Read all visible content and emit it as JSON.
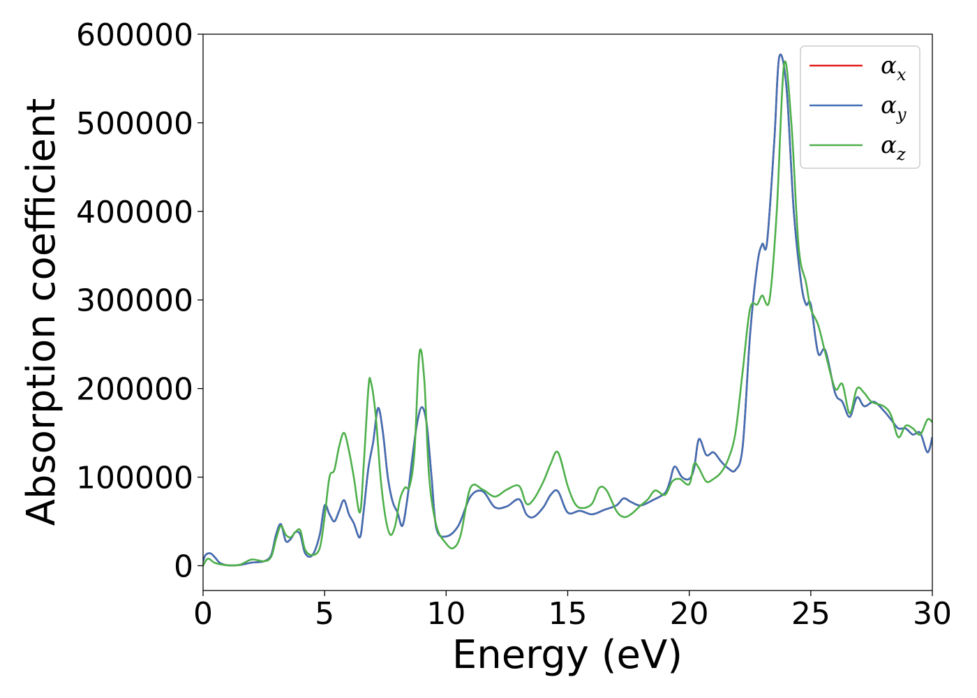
{
  "chart_data": {
    "type": "line",
    "xlabel": "Energy (eV)",
    "ylabel": "Absorption coefficient",
    "xlim": [
      0,
      30
    ],
    "ylim": [
      -28000,
      600000
    ],
    "xticks": [
      0,
      5,
      10,
      15,
      20,
      25,
      30
    ],
    "xtick_labels": [
      "0",
      "5",
      "10",
      "15",
      "20",
      "25",
      "30"
    ],
    "yticks": [
      0,
      100000,
      200000,
      300000,
      400000,
      500000,
      600000
    ],
    "ytick_labels": [
      "0",
      "100000",
      "200000",
      "300000",
      "400000",
      "500000",
      "600000"
    ],
    "grid": false,
    "legend_position": "top-right",
    "series": [
      {
        "name": "α",
        "sub": "x",
        "color": "#e41a1c",
        "x": [
          0,
          0.1,
          0.3,
          0.5,
          0.7,
          1.0,
          1.5,
          2.0,
          2.5,
          2.8,
          3.0,
          3.2,
          3.4,
          3.6,
          3.8,
          4.0,
          4.2,
          4.5,
          4.8,
          5.0,
          5.2,
          5.4,
          5.6,
          5.8,
          6.0,
          6.2,
          6.45,
          6.6,
          6.8,
          7.0,
          7.2,
          7.4,
          7.6,
          7.8,
          8.0,
          8.2,
          8.4,
          8.6,
          8.8,
          9.0,
          9.2,
          9.4,
          9.6,
          10.0,
          10.5,
          11.0,
          11.5,
          12.0,
          12.5,
          13.0,
          13.3,
          13.6,
          14.0,
          14.3,
          14.6,
          15.0,
          15.5,
          16.0,
          16.5,
          17.0,
          17.3,
          17.6,
          18.0,
          18.5,
          19.0,
          19.2,
          19.4,
          19.7,
          20.0,
          20.2,
          20.4,
          20.7,
          21.0,
          21.3,
          21.6,
          21.9,
          22.2,
          22.5,
          22.8,
          23.0,
          23.2,
          23.5,
          23.7,
          24.0,
          24.3,
          24.6,
          24.8,
          25.0,
          25.3,
          25.6,
          26.0,
          26.3,
          26.6,
          26.9,
          27.2,
          27.6,
          28.0,
          28.3,
          28.6,
          28.9,
          29.2,
          29.5,
          29.8,
          30.0
        ],
        "y": [
          5000,
          12000,
          14000,
          9000,
          3000,
          500,
          800,
          3500,
          5000,
          12000,
          35000,
          47000,
          28000,
          30000,
          38000,
          35000,
          14000,
          12000,
          35000,
          68000,
          58000,
          50000,
          62000,
          74000,
          58000,
          48000,
          32000,
          60000,
          110000,
          140000,
          178000,
          150000,
          100000,
          72000,
          60000,
          45000,
          75000,
          120000,
          160000,
          179000,
          160000,
          100000,
          42000,
          33000,
          45000,
          78000,
          84000,
          66000,
          67000,
          75000,
          58000,
          55000,
          66000,
          80000,
          84000,
          60000,
          62000,
          58000,
          63000,
          68000,
          76000,
          72000,
          68000,
          74000,
          82000,
          95000,
          112000,
          100000,
          98000,
          110000,
          143000,
          125000,
          128000,
          118000,
          110000,
          108000,
          135000,
          260000,
          340000,
          363000,
          365000,
          480000,
          574000,
          540000,
          400000,
          320000,
          295000,
          295000,
          240000,
          243000,
          195000,
          185000,
          168000,
          190000,
          180000,
          185000,
          175000,
          165000,
          155000,
          155000,
          148000,
          150000,
          128000,
          145000
        ]
      },
      {
        "name": "α",
        "sub": "y",
        "color": "#3f6fb4",
        "x": [
          0,
          0.1,
          0.3,
          0.5,
          0.7,
          1.0,
          1.5,
          2.0,
          2.5,
          2.8,
          3.0,
          3.2,
          3.4,
          3.6,
          3.8,
          4.0,
          4.2,
          4.5,
          4.8,
          5.0,
          5.2,
          5.4,
          5.6,
          5.8,
          6.0,
          6.2,
          6.45,
          6.6,
          6.8,
          7.0,
          7.2,
          7.4,
          7.6,
          7.8,
          8.0,
          8.2,
          8.4,
          8.6,
          8.8,
          9.0,
          9.2,
          9.4,
          9.6,
          10.0,
          10.5,
          11.0,
          11.5,
          12.0,
          12.5,
          13.0,
          13.3,
          13.6,
          14.0,
          14.3,
          14.6,
          15.0,
          15.5,
          16.0,
          16.5,
          17.0,
          17.3,
          17.6,
          18.0,
          18.5,
          19.0,
          19.2,
          19.4,
          19.7,
          20.0,
          20.2,
          20.4,
          20.7,
          21.0,
          21.3,
          21.6,
          21.9,
          22.2,
          22.5,
          22.8,
          23.0,
          23.2,
          23.5,
          23.7,
          24.0,
          24.3,
          24.6,
          24.8,
          25.0,
          25.3,
          25.6,
          26.0,
          26.3,
          26.6,
          26.9,
          27.2,
          27.6,
          28.0,
          28.3,
          28.6,
          28.9,
          29.2,
          29.5,
          29.8,
          30.0
        ],
        "y": [
          5000,
          12000,
          14000,
          9000,
          3000,
          500,
          800,
          3500,
          5000,
          12000,
          35000,
          47000,
          28000,
          30000,
          38000,
          35000,
          14000,
          12000,
          35000,
          68000,
          58000,
          50000,
          62000,
          74000,
          58000,
          48000,
          32000,
          60000,
          110000,
          140000,
          178000,
          150000,
          100000,
          72000,
          60000,
          45000,
          75000,
          120000,
          160000,
          179000,
          160000,
          100000,
          42000,
          33000,
          45000,
          78000,
          84000,
          66000,
          67000,
          75000,
          58000,
          55000,
          66000,
          80000,
          84000,
          60000,
          62000,
          58000,
          63000,
          68000,
          76000,
          72000,
          68000,
          74000,
          82000,
          95000,
          112000,
          100000,
          98000,
          110000,
          143000,
          125000,
          128000,
          118000,
          110000,
          108000,
          135000,
          260000,
          340000,
          363000,
          365000,
          480000,
          574000,
          540000,
          400000,
          320000,
          295000,
          295000,
          240000,
          243000,
          195000,
          185000,
          168000,
          190000,
          180000,
          185000,
          175000,
          165000,
          155000,
          155000,
          148000,
          150000,
          128000,
          145000
        ]
      },
      {
        "name": "α",
        "sub": "z",
        "color": "#4daf4a",
        "x": [
          0,
          0.2,
          0.5,
          1.0,
          1.5,
          2.0,
          2.5,
          2.8,
          3.0,
          3.2,
          3.4,
          3.6,
          3.8,
          4.0,
          4.2,
          4.5,
          4.8,
          5.0,
          5.2,
          5.4,
          5.6,
          5.8,
          6.0,
          6.2,
          6.45,
          6.6,
          6.8,
          6.9,
          7.1,
          7.3,
          7.5,
          7.7,
          7.9,
          8.1,
          8.3,
          8.5,
          8.7,
          8.9,
          9.1,
          9.3,
          9.6,
          10.0,
          10.3,
          10.6,
          11.0,
          11.5,
          12.0,
          12.5,
          13.0,
          13.3,
          13.6,
          14.0,
          14.3,
          14.6,
          15.0,
          15.3,
          15.6,
          16.0,
          16.3,
          16.6,
          17.0,
          17.3,
          17.6,
          18.0,
          18.3,
          18.6,
          19.0,
          19.3,
          19.6,
          20.0,
          20.2,
          20.4,
          20.7,
          21.0,
          21.3,
          21.6,
          21.9,
          22.2,
          22.5,
          22.8,
          23.0,
          23.3,
          23.6,
          23.9,
          24.2,
          24.5,
          24.8,
          25.0,
          25.3,
          25.6,
          26.0,
          26.3,
          26.6,
          26.9,
          27.2,
          27.5,
          28.0,
          28.3,
          28.6,
          28.9,
          29.2,
          29.5,
          29.8,
          30.0
        ],
        "y": [
          0,
          8000,
          3000,
          500,
          1000,
          7000,
          5000,
          10000,
          30000,
          45000,
          35000,
          32000,
          38000,
          40000,
          18000,
          12000,
          20000,
          55000,
          100000,
          108000,
          135000,
          150000,
          130000,
          100000,
          60000,
          110000,
          200000,
          208000,
          170000,
          100000,
          55000,
          35000,
          45000,
          75000,
          88000,
          90000,
          130000,
          240000,
          210000,
          100000,
          45000,
          25000,
          20000,
          35000,
          88000,
          86000,
          78000,
          86000,
          90000,
          70000,
          75000,
          95000,
          115000,
          128000,
          90000,
          70000,
          65000,
          70000,
          88000,
          85000,
          62000,
          55000,
          58000,
          68000,
          75000,
          85000,
          80000,
          95000,
          98000,
          92000,
          115000,
          110000,
          95000,
          98000,
          105000,
          120000,
          150000,
          220000,
          290000,
          295000,
          305000,
          300000,
          400000,
          566000,
          500000,
          360000,
          320000,
          290000,
          272000,
          240000,
          200000,
          205000,
          172000,
          200000,
          195000,
          185000,
          180000,
          170000,
          145000,
          158000,
          155000,
          148000,
          165000,
          162000
        ]
      }
    ]
  }
}
